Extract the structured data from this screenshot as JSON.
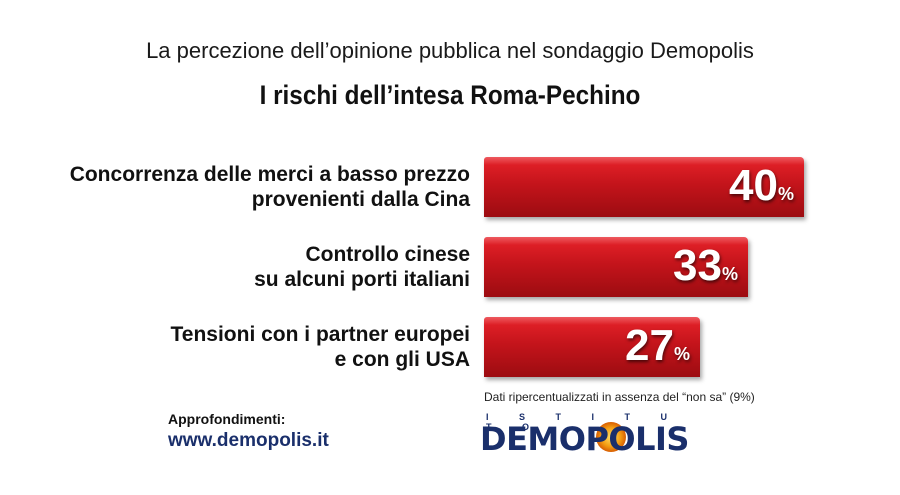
{
  "header": {
    "subtitle": "La percezione dell’opinione pubblica nel sondaggio Demopolis",
    "title": "I rischi dell’intesa Roma-Pechino"
  },
  "chart_data": {
    "type": "bar",
    "orientation": "horizontal",
    "title": "I rischi dell’intesa Roma-Pechino",
    "categories": [
      [
        "Concorrenza delle merci a basso prezzo",
        "provenienti dalla Cina"
      ],
      [
        "Controllo cinese",
        "su alcuni porti italiani"
      ],
      [
        "Tensioni con i partner europei",
        "e con gli USA"
      ]
    ],
    "values": [
      40,
      33,
      27
    ],
    "unit": "%",
    "xlim": [
      0,
      40
    ],
    "bar_color": "#c4141b"
  },
  "note": "Dati ripercentualizzati in assenza del “non sa” (9%)",
  "footer": {
    "approfondimenti": "Approfondimenti:",
    "website": "www.demopolis.it"
  },
  "logo": {
    "top": "I S T I T U T O",
    "name": "DEMOPOLIS"
  }
}
